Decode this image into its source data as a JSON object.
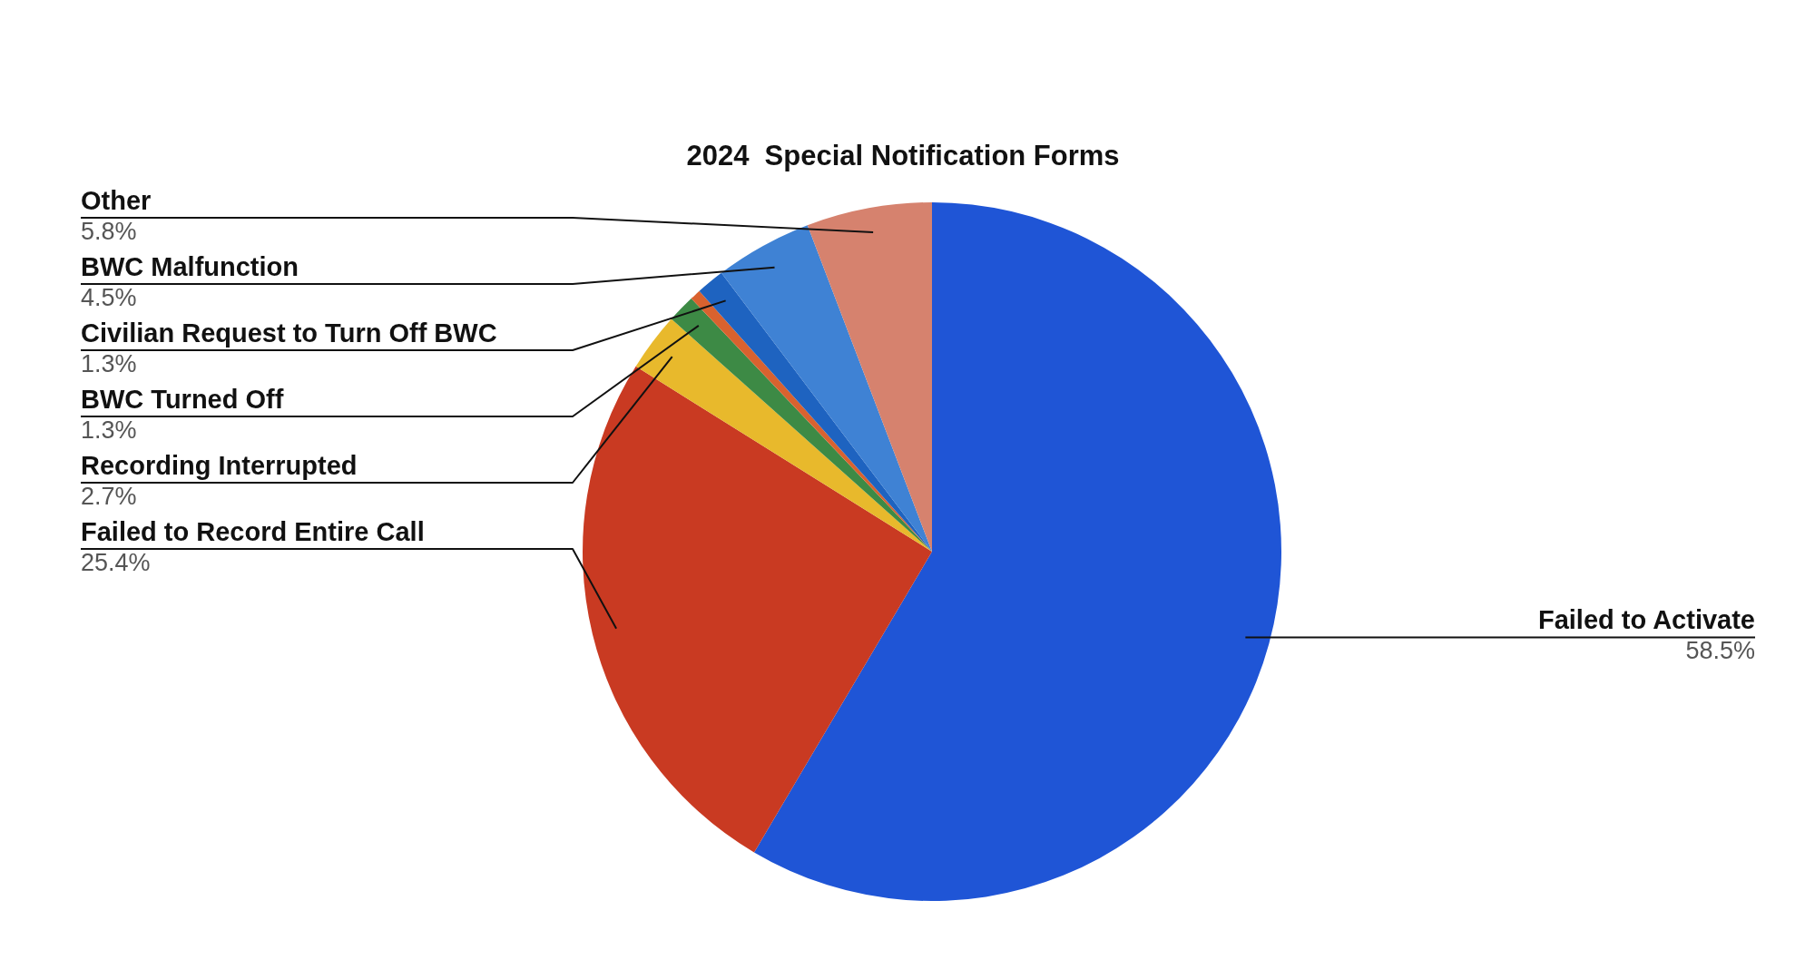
{
  "chart_data": {
    "type": "pie",
    "title": "2024  Special Notification Forms",
    "categories": [
      "Failed to Activate",
      "Failed to Record Entire Call",
      "Recording Interrupted",
      "BWC Turned Off",
      null,
      "Civilian Request to Turn Off BWC",
      "BWC Malfunction",
      "Other"
    ],
    "values": [
      58.5,
      25.4,
      2.7,
      1.3,
      0.5,
      1.3,
      4.5,
      5.8
    ],
    "colors": [
      "#1f55d6",
      "#c93a22",
      "#e8b92c",
      "#3d8a45",
      "#d9622f",
      "#1e63c0",
      "#3f82d4",
      "#d6826e"
    ],
    "value_labels": [
      "58.5%",
      "25.4%",
      "2.7%",
      "1.3%",
      null,
      "1.3%",
      "4.5%",
      "5.8%"
    ]
  }
}
